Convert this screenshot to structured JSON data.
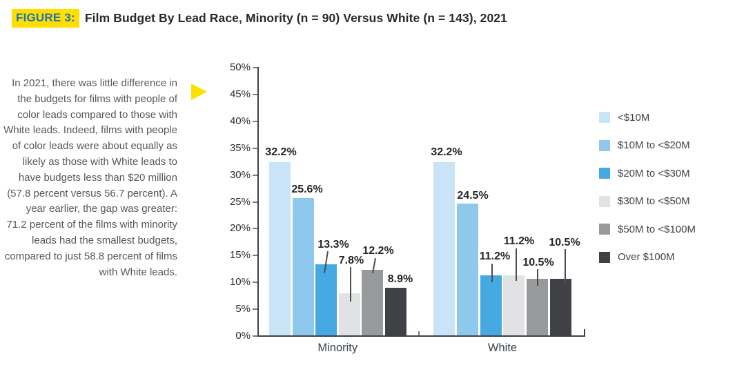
{
  "figure": {
    "tag": "FIGURE 3:",
    "title": "Film Budget By Lead Race, Minority (n = 90) Versus White (n = 143), 2021"
  },
  "note": {
    "text": "In 2021, there was little difference in the budgets for films with people of color leads compared to those with White leads. Indeed, films with people of color leads were about equally as likely as those with White leads to have budgets less than $20 million (57.8 percent versus 56.7 percent). A year earlier, the gap was greater: 71.2 percent of the films with minority leads had the smallest budgets, compared to just 58.8 percent of films with White leads.",
    "arrow_icon": "right-triangle"
  },
  "colors": {
    "highlight_yellow": "#ffde00",
    "figure_tag_blue": "#1b75bc",
    "title_text": "#27292c",
    "note_text": "#55575b",
    "axis_line": "#3e4043",
    "tick": "#77797c",
    "data_label": "#232528",
    "category_label": "#39424d",
    "arrow_yellow": "#ffe100"
  },
  "chart_data": {
    "type": "bar",
    "title": "Film Budget By Lead Race, Minority (n = 90) Versus White (n = 143), 2021",
    "categories": [
      "Minority",
      "White"
    ],
    "series": [
      {
        "name": "<$10M",
        "color": "#c8e4f6",
        "values": [
          32.2,
          32.2
        ]
      },
      {
        "name": "$10M to <$20M",
        "color": "#8fc8ed",
        "values": [
          25.6,
          24.5
        ]
      },
      {
        "name": "$20M to <$30M",
        "color": "#47a9e2",
        "values": [
          13.3,
          11.2
        ]
      },
      {
        "name": "$30M to <$50M",
        "color": "#e1e2e4",
        "values": [
          7.8,
          11.2
        ]
      },
      {
        "name": "$50M to <$100M",
        "color": "#97999b",
        "values": [
          12.2,
          10.5
        ]
      },
      {
        "name": "Over $100M",
        "color": "#3f4144",
        "values": [
          8.9,
          10.5
        ]
      }
    ],
    "value_labels": [
      [
        "32.2%",
        "25.6%",
        "13.3%",
        "7.8%",
        "12.2%",
        "8.9%"
      ],
      [
        "32.2%",
        "24.5%",
        "11.2%",
        "11.2%",
        "10.5%",
        "10.5%"
      ]
    ],
    "xlabel": "",
    "ylabel": "",
    "ylim": [
      0,
      50
    ],
    "ytick_step": 5,
    "yticks": [
      "0%",
      "5%",
      "10%",
      "15%",
      "20%",
      "25%",
      "30%",
      "35%",
      "40%",
      "45%",
      "50%"
    ],
    "grid": false,
    "legend_position": "right"
  }
}
